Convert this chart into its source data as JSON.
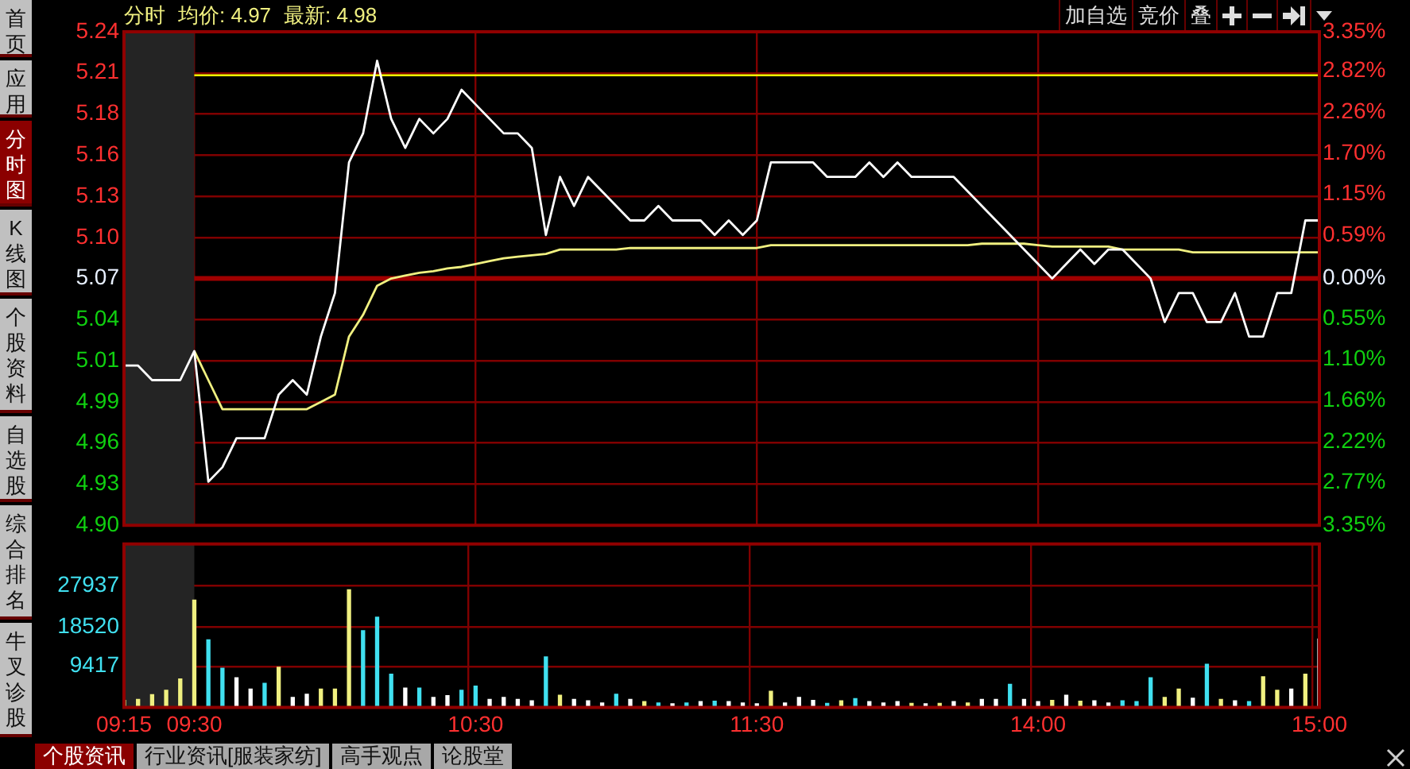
{
  "chart_data": [
    {
      "type": "line",
      "title": "分时",
      "annotations": [
        "均价: 4.97",
        "最新: 4.98",
        "加自选",
        "竞价",
        "叠"
      ],
      "categories": [
        "09:15",
        null,
        null,
        null,
        null,
        "09:30",
        null,
        null,
        null,
        null,
        null,
        null,
        null,
        null,
        null,
        null,
        null,
        null,
        null,
        null,
        null,
        null,
        null,
        null,
        null,
        "10:30",
        null,
        null,
        null,
        null,
        null,
        null,
        null,
        null,
        null,
        null,
        null,
        null,
        null,
        null,
        null,
        null,
        null,
        null,
        null,
        "11:30",
        null,
        null,
        null,
        null,
        null,
        null,
        null,
        null,
        null,
        null,
        null,
        null,
        null,
        null,
        null,
        null,
        null,
        null,
        null,
        "14:00",
        null,
        null,
        null,
        null,
        null,
        null,
        null,
        null,
        null,
        null,
        null,
        null,
        null,
        null,
        null,
        null,
        null,
        null,
        null,
        "15:00"
      ],
      "series": [
        {
          "color": "#ffffff",
          "values": [
            5.01,
            5.01,
            5.0,
            5.0,
            5.0,
            5.02,
            4.93,
            4.94,
            4.96,
            4.96,
            4.96,
            4.99,
            5.0,
            4.99,
            5.03,
            5.06,
            5.15,
            5.17,
            5.22,
            5.18,
            5.16,
            5.18,
            5.17,
            5.18,
            5.2,
            5.19,
            5.18,
            5.17,
            5.17,
            5.16,
            5.1,
            5.14,
            5.12,
            5.14,
            5.13,
            5.12,
            5.11,
            5.11,
            5.12,
            5.11,
            5.11,
            5.11,
            5.1,
            5.11,
            5.1,
            5.11,
            5.15,
            5.15,
            5.15,
            5.15,
            5.14,
            5.14,
            5.14,
            5.15,
            5.14,
            5.15,
            5.14,
            5.14,
            5.14,
            5.14,
            5.13,
            5.12,
            5.11,
            5.1,
            5.09,
            5.08,
            5.07,
            5.08,
            5.09,
            5.08,
            5.09,
            5.09,
            5.08,
            5.07,
            5.04,
            5.06,
            5.06,
            5.04,
            5.04,
            5.06,
            5.03,
            5.03,
            5.06,
            5.06,
            5.11,
            5.11
          ]
        },
        {
          "color": "#f0f080",
          "values": [
            null,
            null,
            null,
            null,
            null,
            5.02,
            5.0,
            4.98,
            4.98,
            4.98,
            4.98,
            4.98,
            4.98,
            4.98,
            4.985,
            4.99,
            5.03,
            5.045,
            5.065,
            5.07,
            5.072,
            5.074,
            5.075,
            5.077,
            5.078,
            5.08,
            5.082,
            5.084,
            5.085,
            5.086,
            5.087,
            5.09,
            5.09,
            5.09,
            5.09,
            5.09,
            5.091,
            5.091,
            5.091,
            5.091,
            5.091,
            5.091,
            5.091,
            5.091,
            5.091,
            5.091,
            5.093,
            5.093,
            5.093,
            5.093,
            5.093,
            5.093,
            5.093,
            5.093,
            5.093,
            5.093,
            5.093,
            5.093,
            5.093,
            5.093,
            5.093,
            5.094,
            5.094,
            5.094,
            5.094,
            5.093,
            5.092,
            5.092,
            5.092,
            5.092,
            5.092,
            5.09,
            5.09,
            5.09,
            5.09,
            5.09,
            5.088,
            5.088,
            5.088,
            5.088,
            5.088,
            5.088,
            5.088,
            5.088,
            5.088,
            5.088
          ]
        }
      ],
      "ylim": [
        4.9,
        5.24
      ],
      "yticks": [
        {
          "value": 4.9,
          "label": "4.90"
        },
        {
          "value": 4.9283,
          "label": "4.93"
        },
        {
          "value": 4.9567,
          "label": "4.96"
        },
        {
          "value": 4.985,
          "label": "4.99"
        },
        {
          "value": 5.0133,
          "label": "5.01"
        },
        {
          "value": 5.0417,
          "label": "5.04"
        },
        {
          "value": 5.07,
          "label": "5.07"
        },
        {
          "value": 5.0983,
          "label": "5.10"
        },
        {
          "value": 5.1267,
          "label": "5.13"
        },
        {
          "value": 5.155,
          "label": "5.16"
        },
        {
          "value": 5.1833,
          "label": "5.18"
        },
        {
          "value": 5.2117,
          "label": "5.21"
        },
        {
          "value": 5.24,
          "label": "5.24"
        }
      ],
      "y2lim": [
        -3.35,
        3.35
      ],
      "y2ticks": [
        {
          "value": -3.35,
          "label": "3.35%"
        },
        {
          "value": -2.77,
          "label": "2.77%"
        },
        {
          "value": -2.22,
          "label": "2.22%"
        },
        {
          "value": -1.66,
          "label": "1.66%"
        },
        {
          "value": -1.1,
          "label": "1.10%"
        },
        {
          "value": -0.55,
          "label": "0.55%"
        },
        {
          "value": 0,
          "label": "0.00%"
        },
        {
          "value": 0.59,
          "label": "0.59%"
        },
        {
          "value": 1.15,
          "label": "1.15%"
        },
        {
          "value": 1.7,
          "label": "1.70%"
        },
        {
          "value": 2.26,
          "label": "2.26%"
        },
        {
          "value": 2.82,
          "label": "2.82%"
        },
        {
          "value": 3.35,
          "label": "3.35%"
        }
      ],
      "ref_lines": [
        {
          "axis": "y",
          "value": 5.07,
          "color": "#a00000"
        },
        {
          "axis": "y",
          "value": 5.21,
          "color": "#ffff00"
        }
      ],
      "bands": [
        {
          "axis": "x",
          "from": "09:15",
          "to": "09:30",
          "color": "#242424"
        }
      ],
      "grid": true,
      "marker": "none",
      "tick_labels": "y"
    },
    {
      "type": "bar",
      "annotations": [
        "首页",
        "应用",
        "分时图",
        "K线图",
        "个股资料",
        "自选股",
        "综合排名",
        "牛叉诊股",
        "个股资讯",
        "行业资讯[服装家纺]",
        "高手观点",
        "论股堂"
      ],
      "categories": [
        "09:15",
        null,
        null,
        null,
        null,
        "09:30",
        null,
        null,
        null,
        null,
        null,
        null,
        null,
        null,
        null,
        null,
        null,
        null,
        null,
        null,
        null,
        null,
        null,
        null,
        null,
        "10:30",
        null,
        null,
        null,
        null,
        null,
        null,
        null,
        null,
        null,
        null,
        null,
        null,
        null,
        null,
        null,
        null,
        null,
        null,
        null,
        "11:30",
        null,
        null,
        null,
        null,
        null,
        null,
        null,
        null,
        null,
        null,
        null,
        null,
        null,
        null,
        null,
        null,
        null,
        null,
        null,
        "14:00",
        null,
        null,
        null,
        null,
        null,
        null,
        null,
        null,
        null,
        null,
        null,
        null,
        null,
        null,
        null,
        null,
        null,
        null,
        null,
        "15:00"
      ],
      "values": [
        1600,
        1800,
        2900,
        3900,
        6500,
        24600,
        15500,
        9000,
        6800,
        4200,
        5500,
        9200,
        2300,
        3000,
        4200,
        4200,
        27000,
        17600,
        20700,
        7600,
        4400,
        4400,
        2300,
        2700,
        3900,
        4900,
        1800,
        2300,
        1800,
        1500,
        11600,
        2800,
        1800,
        1500,
        1000,
        3000,
        1800,
        1300,
        1000,
        800,
        1000,
        1300,
        1400,
        1300,
        1000,
        800,
        3700,
        1000,
        2300,
        1600,
        900,
        1500,
        2000,
        1300,
        1000,
        1300,
        900,
        800,
        900,
        1300,
        1000,
        1800,
        1800,
        5300,
        1800,
        1300,
        1600,
        2800,
        1400,
        1500,
        1000,
        1500,
        1300,
        6800,
        2300,
        4200,
        2100,
        9900,
        1800,
        1500,
        1300,
        7000,
        3900,
        4200,
        7600,
        15700
      ],
      "colors": [
        "#f0f080",
        "#f0f080",
        "#f0f080",
        "#f0f080",
        "#f0f080",
        "#f0f080",
        "#40e0f0",
        "#40e0f0",
        "#ffffff",
        "#ffffff",
        "#40e0f0",
        "#f0f080",
        "#ffffff",
        "#ffffff",
        "#f0f080",
        "#f0f080",
        "#f0f080",
        "#40e0f0",
        "#40e0f0",
        "#40e0f0",
        "#ffffff",
        "#40e0f0",
        "#ffffff",
        "#ffffff",
        "#40e0f0",
        "#40e0f0",
        "#ffffff",
        "#ffffff",
        "#ffffff",
        "#ffffff",
        "#40e0f0",
        "#f0f080",
        "#ffffff",
        "#ffffff",
        "#ffffff",
        "#40e0f0",
        "#ffffff",
        "#f0f080",
        "#40e0f0",
        "#ffffff",
        "#40e0f0",
        "#ffffff",
        "#40e0f0",
        "#ffffff",
        "#ffffff",
        "#ffffff",
        "#f0f080",
        "#ffffff",
        "#ffffff",
        "#ffffff",
        "#40e0f0",
        "#f0f080",
        "#40e0f0",
        "#ffffff",
        "#ffffff",
        "#ffffff",
        "#f0f080",
        "#ffffff",
        "#f0f080",
        "#ffffff",
        "#f0f080",
        "#ffffff",
        "#ffffff",
        "#40e0f0",
        "#ffffff",
        "#ffffff",
        "#f0f080",
        "#ffffff",
        "#f0f080",
        "#ffffff",
        "#ffffff",
        "#40e0f0",
        "#40e0f0",
        "#40e0f0",
        "#f0f080",
        "#f0f080",
        "#ffffff",
        "#40e0f0",
        "#f0f080",
        "#ffffff",
        "#40e0f0",
        "#f0f080",
        "#f0f080",
        "#ffffff",
        "#f0f080",
        "#ffffff"
      ],
      "ylim": [
        0,
        37500
      ],
      "yticks": [
        9417,
        18520,
        27937
      ],
      "bands": [
        {
          "axis": "x",
          "from": "09:15",
          "to": "09:30",
          "color": "#242424"
        }
      ],
      "grid": true
    }
  ]
}
